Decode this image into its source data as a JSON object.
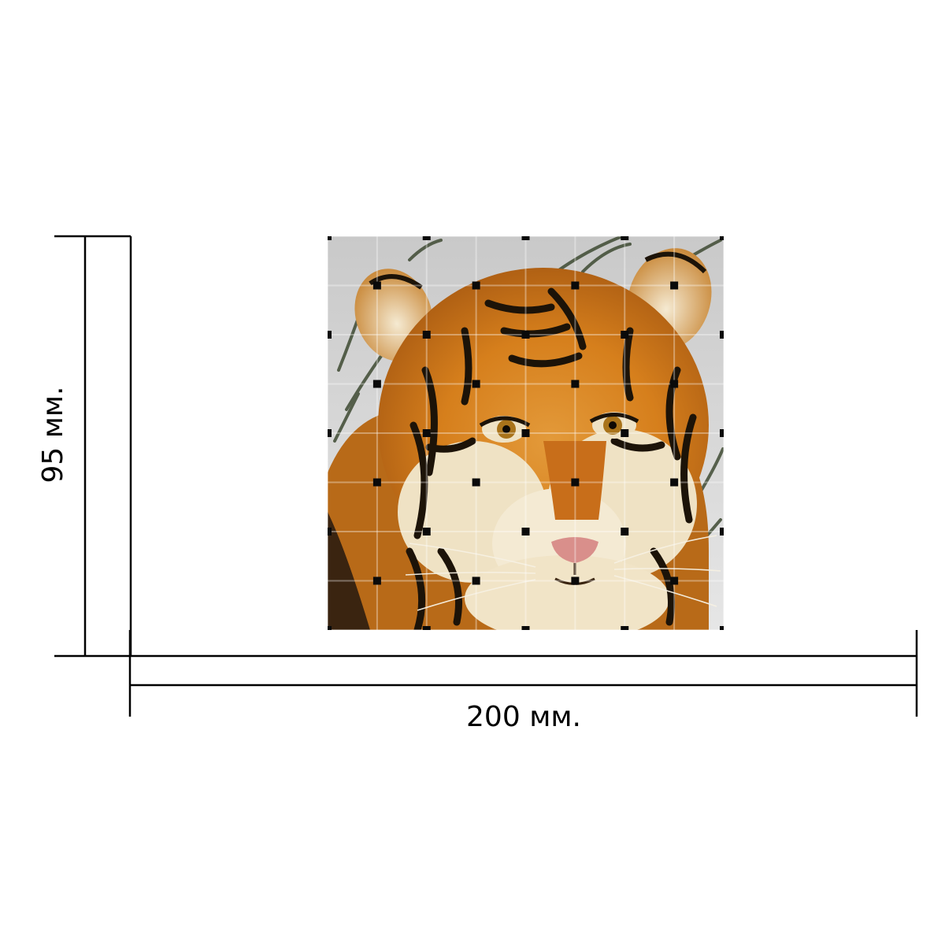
{
  "dimensions": {
    "width_label": "200 мм.",
    "height_label": "95 мм."
  },
  "colors": {
    "line": "#000000",
    "background": "#ffffff",
    "snow": "#d2d2d2",
    "fur_orange": "#d8841e",
    "fur_cream": "#efe2c4",
    "stripe": "#1c1308",
    "weave_dot": "#0a0a0a",
    "nose": "#d98f8b",
    "eye": "#a9731a",
    "grass": "#3e4a32"
  },
  "image": {
    "subject": "tiger-cub-woven-tile"
  },
  "weave": {
    "cells": 8
  }
}
